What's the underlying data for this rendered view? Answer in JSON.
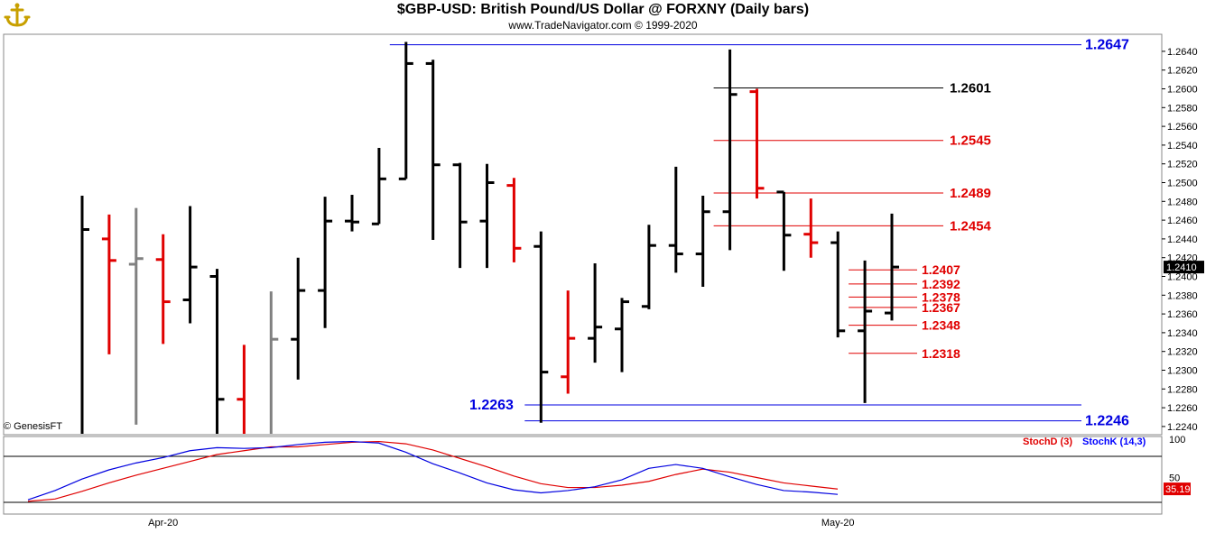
{
  "header": {
    "title": "$GBP-USD:  British Pound/US Dollar @ FORXNY  (Daily bars)",
    "subtitle": "www.TradeNavigator.com © 1999-2020",
    "logo_icon": "anchor-logo-icon"
  },
  "footer": {
    "copyright": "© GenesisFT"
  },
  "colors": {
    "up_bar": "#000000",
    "down_bar": "#e00000",
    "neutral_bar": "#808080",
    "blue_level": "#0000e0",
    "red_level": "#e00000",
    "stoch_k": "#0000ff",
    "stoch_d": "#e00000"
  },
  "chart_data": [
    {
      "type": "ohlc",
      "title": "$GBP-USD:  British Pound/US Dollar @ FORXNY  (Daily bars)",
      "ylim": [
        1.2225,
        1.2655
      ],
      "y_ticks": [
        "1.2640",
        "1.2620",
        "1.2600",
        "1.2580",
        "1.2560",
        "1.2540",
        "1.2520",
        "1.2500",
        "1.2480",
        "1.2460",
        "1.2440",
        "1.2420",
        "1.2400",
        "1.2380",
        "1.2360",
        "1.2340",
        "1.2320",
        "1.2300",
        "1.2280",
        "1.2260",
        "1.2240"
      ],
      "x_labels": [
        {
          "label": "Apr-20",
          "bar": 3
        },
        {
          "label": "May-20",
          "bar": 28
        }
      ],
      "last_price": "1.2410",
      "bars": [
        {
          "o": 1.2179,
          "h": 1.2486,
          "l": 1.215,
          "c": 1.245,
          "color": "black"
        },
        {
          "o": 1.244,
          "h": 1.2466,
          "l": 1.2317,
          "c": 1.2417,
          "color": "red"
        },
        {
          "o": 1.2413,
          "h": 1.2473,
          "l": 1.2242,
          "c": 1.2419,
          "color": "gray"
        },
        {
          "o": 1.2418,
          "h": 1.2445,
          "l": 1.2328,
          "c": 1.2373,
          "color": "red"
        },
        {
          "o": 1.2375,
          "h": 1.2475,
          "l": 1.235,
          "c": 1.241,
          "color": "black"
        },
        {
          "o": 1.24,
          "h": 1.2408,
          "l": 1.22,
          "c": 1.2269,
          "color": "black"
        },
        {
          "o": 1.2269,
          "h": 1.2327,
          "l": 1.221,
          "c": 1.2222,
          "color": "red"
        },
        {
          "o": 1.2222,
          "h": 1.2384,
          "l": 1.2215,
          "c": 1.2333,
          "color": "gray"
        },
        {
          "o": 1.2333,
          "h": 1.242,
          "l": 1.229,
          "c": 1.2385,
          "color": "black"
        },
        {
          "o": 1.2385,
          "h": 1.2485,
          "l": 1.2345,
          "c": 1.2459,
          "color": "black"
        },
        {
          "o": 1.2459,
          "h": 1.2487,
          "l": 1.2448,
          "c": 1.2458,
          "color": "black"
        },
        {
          "o": 1.2456,
          "h": 1.2537,
          "l": 1.2456,
          "c": 1.2504,
          "color": "black"
        },
        {
          "o": 1.2504,
          "h": 1.265,
          "l": 1.2504,
          "c": 1.2627,
          "color": "black"
        },
        {
          "o": 1.2627,
          "h": 1.2631,
          "l": 1.2439,
          "c": 1.2519,
          "color": "black"
        },
        {
          "o": 1.2519,
          "h": 1.2521,
          "l": 1.2409,
          "c": 1.2458,
          "color": "black"
        },
        {
          "o": 1.2459,
          "h": 1.252,
          "l": 1.2409,
          "c": 1.25,
          "color": "black"
        },
        {
          "o": 1.2497,
          "h": 1.2505,
          "l": 1.2415,
          "c": 1.243,
          "color": "red"
        },
        {
          "o": 1.2432,
          "h": 1.2448,
          "l": 1.2244,
          "c": 1.2298,
          "color": "black"
        },
        {
          "o": 1.2293,
          "h": 1.2385,
          "l": 1.2275,
          "c": 1.2334,
          "color": "red"
        },
        {
          "o": 1.2334,
          "h": 1.2414,
          "l": 1.2308,
          "c": 1.2346,
          "color": "black"
        },
        {
          "o": 1.2344,
          "h": 1.2377,
          "l": 1.2298,
          "c": 1.2373,
          "color": "black"
        },
        {
          "o": 1.2368,
          "h": 1.2455,
          "l": 1.2365,
          "c": 1.2433,
          "color": "black"
        },
        {
          "o": 1.2433,
          "h": 1.2517,
          "l": 1.2404,
          "c": 1.2424,
          "color": "black"
        },
        {
          "o": 1.2424,
          "h": 1.2486,
          "l": 1.2389,
          "c": 1.2469,
          "color": "black"
        },
        {
          "o": 1.2469,
          "h": 1.2642,
          "l": 1.2428,
          "c": 1.2594,
          "color": "black"
        },
        {
          "o": 1.2597,
          "h": 1.26,
          "l": 1.2483,
          "c": 1.2494,
          "color": "red"
        },
        {
          "o": 1.249,
          "h": 1.249,
          "l": 1.2406,
          "c": 1.2444,
          "color": "black"
        },
        {
          "o": 1.2445,
          "h": 1.2483,
          "l": 1.242,
          "c": 1.2436,
          "color": "red"
        },
        {
          "o": 1.2436,
          "h": 1.2448,
          "l": 1.2335,
          "c": 1.2342,
          "color": "black"
        },
        {
          "o": 1.2342,
          "h": 1.2417,
          "l": 1.2265,
          "c": 1.2363,
          "color": "black"
        },
        {
          "o": 1.2361,
          "h": 1.2467,
          "l": 1.2353,
          "c": 1.241,
          "color": "black"
        }
      ],
      "levels": [
        {
          "value": 1.2647,
          "label": "1.2647",
          "color": "blue",
          "from_bar": 12
        },
        {
          "value": 1.2601,
          "label": "1.2601",
          "color": "black",
          "from_bar": 24
        },
        {
          "value": 1.2545,
          "label": "1.2545",
          "color": "red",
          "from_bar": 24
        },
        {
          "value": 1.2489,
          "label": "1.2489",
          "color": "red",
          "from_bar": 24
        },
        {
          "value": 1.2454,
          "label": "1.2454",
          "color": "red",
          "from_bar": 24
        },
        {
          "value": 1.2407,
          "label": "1.2407",
          "color": "red",
          "from_bar": 29
        },
        {
          "value": 1.2392,
          "label": "1.2392",
          "color": "red",
          "from_bar": 29
        },
        {
          "value": 1.2378,
          "label": "1.2378",
          "color": "red",
          "from_bar": 29
        },
        {
          "value": 1.2367,
          "label": "1.2367",
          "color": "red",
          "from_bar": 29
        },
        {
          "value": 1.2348,
          "label": "1.2348",
          "color": "red",
          "from_bar": 29
        },
        {
          "value": 1.2318,
          "label": "1.2318",
          "color": "red",
          "from_bar": 29
        },
        {
          "value": 1.2263,
          "label": "1.2263",
          "color": "blue",
          "from_bar": 17,
          "label_left": true
        },
        {
          "value": 1.2246,
          "label": "1.2246",
          "color": "blue",
          "from_bar": 17
        }
      ]
    },
    {
      "type": "line",
      "ylim": [
        0,
        100
      ],
      "y_ticks": [
        "100",
        "50"
      ],
      "last_value": "35.19",
      "series": [
        {
          "name": "StochD (3)",
          "color": "red",
          "values": [
            19,
            22,
            32,
            43,
            53,
            62,
            71,
            80,
            85,
            90,
            90,
            93,
            96,
            97,
            94,
            86,
            75,
            64,
            52,
            42,
            37,
            37,
            40,
            45,
            54,
            61,
            57,
            50,
            43,
            39,
            35
          ]
        },
        {
          "name": "StochK (14,3)",
          "color": "blue",
          "values": [
            21,
            33,
            48,
            60,
            69,
            76,
            85,
            89,
            88,
            89,
            93,
            96,
            97,
            95,
            83,
            68,
            56,
            43,
            34,
            30,
            33,
            38,
            47,
            62,
            67,
            62,
            51,
            41,
            33,
            31,
            28
          ]
        }
      ]
    }
  ]
}
